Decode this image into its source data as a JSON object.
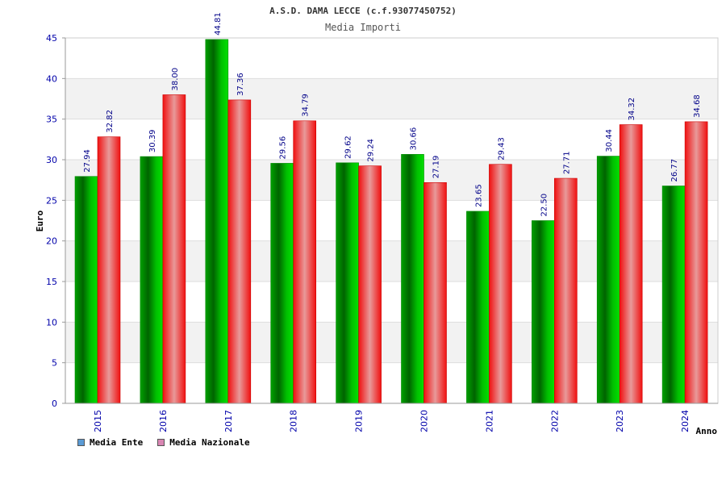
{
  "chart_data": {
    "type": "bar",
    "title": "A.S.D. DAMA LECCE (c.f.93077450752)",
    "subtitle": "Media Importi",
    "xlabel": "Anno",
    "ylabel": "Euro",
    "ylim": [
      0,
      45
    ],
    "yticks": [
      "0",
      "5",
      "10",
      "15",
      "20",
      "25",
      "30",
      "35",
      "40",
      "45"
    ],
    "grid": true,
    "legend_position": "bottom-left",
    "categories": [
      "2015",
      "2016",
      "2017",
      "2018",
      "2019",
      "2020",
      "2021",
      "2022",
      "2023",
      "2024"
    ],
    "series": [
      {
        "name": "Media Ente",
        "values": [
          27.94,
          30.39,
          44.81,
          29.56,
          29.62,
          30.66,
          23.65,
          22.5,
          30.44,
          26.77
        ],
        "labels": [
          "27.94",
          "30.39",
          "44.81",
          "29.56",
          "29.62",
          "30.66",
          "23.65",
          "22.50",
          "30.44",
          "26.77"
        ],
        "color": "#00b300",
        "legend_color": "#5b9bd5"
      },
      {
        "name": "Media Nazionale",
        "values": [
          32.82,
          38.0,
          37.36,
          34.79,
          29.24,
          27.19,
          29.43,
          27.71,
          34.32,
          34.68
        ],
        "labels": [
          "32.82",
          "38.00",
          "37.36",
          "34.79",
          "29.24",
          "27.19",
          "29.43",
          "27.71",
          "34.32",
          "34.68"
        ],
        "color": "#ee1111",
        "legend_color": "#d986b3"
      }
    ]
  }
}
